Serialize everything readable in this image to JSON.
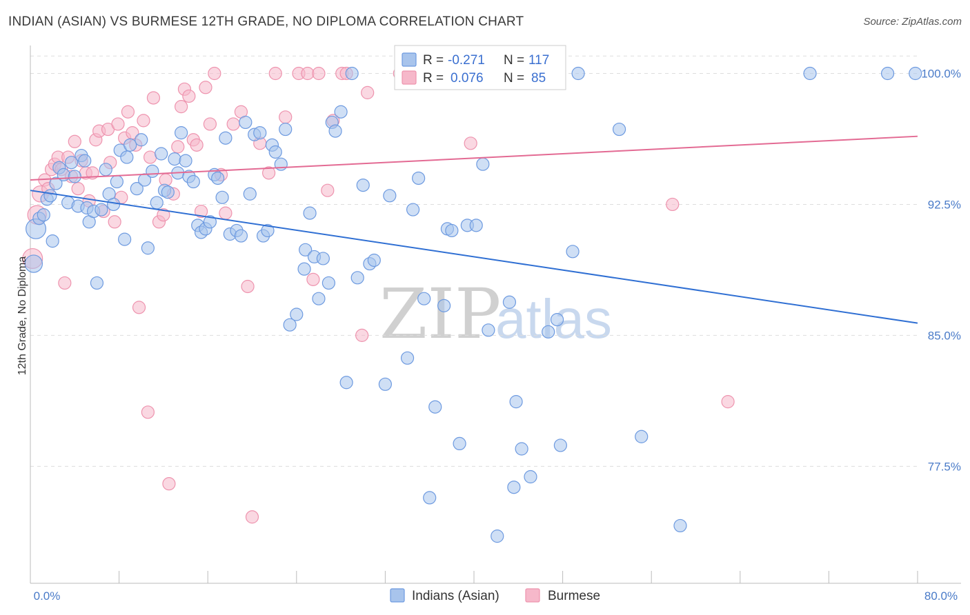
{
  "title": "INDIAN (ASIAN) VS BURMESE 12TH GRADE, NO DIPLOMA CORRELATION CHART",
  "source": "Source: ZipAtlas.com",
  "watermark": {
    "zip": "ZIP",
    "atlas": "atlas"
  },
  "colors": {
    "blue_fill": "#a8c4ec",
    "blue_stroke": "#6d9ae0",
    "blue_line": "#2f6fd3",
    "pink_fill": "#f6b8ca",
    "pink_stroke": "#ee93ae",
    "pink_line": "#e36a93",
    "grid": "#dddddd",
    "tick_text": "#4a7bc8"
  },
  "stats": {
    "blue": {
      "r_label": "R =",
      "r_value": "-0.271",
      "n_label": "N =",
      "n_value": "117"
    },
    "pink": {
      "r_label": "R =",
      "r_value": "0.076",
      "n_label": "N =",
      "n_value": "85"
    }
  },
  "chart_data": {
    "type": "scatter",
    "title": "INDIAN (ASIAN) VS BURMESE 12TH GRADE, NO DIPLOMA CORRELATION CHART",
    "xlabel": "",
    "ylabel": "12th Grade, No Diploma",
    "xlim": [
      0,
      80
    ],
    "ylim": [
      70.8,
      101.6
    ],
    "x_tick_labels": [
      "0.0%",
      "80.0%"
    ],
    "y_ticks": [
      {
        "value": 100.0,
        "label": "100.0%"
      },
      {
        "value": 92.5,
        "label": "92.5%"
      },
      {
        "value": 85.0,
        "label": "85.0%"
      },
      {
        "value": 77.5,
        "label": "77.5%"
      }
    ],
    "grid": "horizontal dashed",
    "legend_position": "bottom",
    "series": [
      {
        "name": "Indians (Asian)",
        "color": "#a8c4ec",
        "trend": {
          "x": [
            0,
            80
          ],
          "y": [
            93.3,
            85.7
          ]
        },
        "points": [
          [
            0.3,
            89.1,
            1.4
          ],
          [
            0.5,
            91.1,
            1.6
          ],
          [
            0.8,
            91.7,
            1.0
          ],
          [
            1.2,
            91.9,
            1.0
          ],
          [
            1.5,
            92.8,
            1.0
          ],
          [
            1.8,
            93.0,
            1.0
          ],
          [
            2.0,
            90.4,
            1.0
          ],
          [
            2.3,
            93.7,
            1.0
          ],
          [
            2.6,
            94.6,
            1.0
          ],
          [
            3.0,
            94.2,
            1.0
          ],
          [
            3.4,
            92.6,
            1.0
          ],
          [
            3.7,
            94.9,
            1.0
          ],
          [
            4.0,
            94.1,
            1.0
          ],
          [
            4.3,
            92.4,
            1.0
          ],
          [
            4.6,
            95.3,
            1.0
          ],
          [
            4.9,
            95.0,
            1.0
          ],
          [
            5.1,
            92.3,
            1.0
          ],
          [
            5.3,
            91.5,
            1.0
          ],
          [
            5.7,
            92.1,
            1.0
          ],
          [
            6.0,
            88.0,
            1.0
          ],
          [
            6.4,
            92.2,
            1.0
          ],
          [
            6.8,
            94.5,
            1.0
          ],
          [
            7.1,
            93.1,
            1.0
          ],
          [
            7.5,
            92.5,
            1.0
          ],
          [
            7.8,
            93.8,
            1.0
          ],
          [
            8.1,
            95.6,
            1.0
          ],
          [
            8.5,
            90.5,
            1.0
          ],
          [
            8.7,
            95.2,
            1.0
          ],
          [
            9.0,
            95.9,
            1.0
          ],
          [
            9.6,
            93.4,
            1.0
          ],
          [
            10.0,
            96.2,
            1.0
          ],
          [
            10.3,
            93.9,
            1.0
          ],
          [
            10.6,
            90.0,
            1.0
          ],
          [
            11.0,
            94.4,
            1.0
          ],
          [
            11.4,
            92.6,
            1.0
          ],
          [
            11.8,
            95.4,
            1.0
          ],
          [
            12.1,
            93.3,
            1.0
          ],
          [
            12.4,
            93.2,
            1.0
          ],
          [
            13.0,
            95.1,
            1.0
          ],
          [
            13.3,
            94.3,
            1.0
          ],
          [
            13.6,
            96.6,
            1.0
          ],
          [
            14.0,
            95.0,
            1.0
          ],
          [
            14.3,
            94.1,
            1.0
          ],
          [
            14.7,
            93.8,
            1.0
          ],
          [
            15.1,
            91.3,
            1.0
          ],
          [
            15.4,
            90.9,
            1.0
          ],
          [
            15.8,
            91.1,
            1.0
          ],
          [
            16.2,
            91.5,
            1.0
          ],
          [
            16.6,
            94.2,
            1.0
          ],
          [
            16.9,
            94.0,
            1.0
          ],
          [
            17.3,
            92.9,
            1.0
          ],
          [
            17.6,
            96.3,
            1.0
          ],
          [
            18.0,
            90.8,
            1.0
          ],
          [
            18.6,
            91.0,
            1.0
          ],
          [
            19.0,
            90.7,
            1.0
          ],
          [
            19.4,
            97.2,
            1.0
          ],
          [
            19.8,
            93.1,
            1.0
          ],
          [
            20.2,
            96.5,
            1.0
          ],
          [
            20.7,
            96.6,
            1.0
          ],
          [
            21.0,
            90.7,
            1.0
          ],
          [
            21.4,
            91.0,
            1.0
          ],
          [
            21.8,
            95.9,
            1.0
          ],
          [
            22.1,
            95.5,
            1.0
          ],
          [
            22.6,
            94.8,
            1.0
          ],
          [
            23.0,
            96.8,
            1.0
          ],
          [
            23.4,
            85.6,
            1.0
          ],
          [
            24.0,
            86.2,
            1.0
          ],
          [
            24.7,
            88.8,
            1.0
          ],
          [
            24.8,
            89.9,
            1.0
          ],
          [
            25.2,
            92.0,
            1.0
          ],
          [
            25.6,
            89.5,
            1.0
          ],
          [
            26.0,
            87.1,
            1.0
          ],
          [
            26.4,
            89.4,
            1.0
          ],
          [
            26.9,
            88.0,
            1.0
          ],
          [
            27.2,
            97.2,
            1.0
          ],
          [
            27.5,
            96.7,
            1.0
          ],
          [
            28.0,
            97.8,
            1.0
          ],
          [
            28.5,
            82.3,
            1.0
          ],
          [
            29.0,
            100.0,
            1.0
          ],
          [
            29.5,
            88.3,
            1.0
          ],
          [
            30.0,
            93.6,
            1.0
          ],
          [
            30.6,
            89.1,
            1.0
          ],
          [
            31.0,
            89.3,
            1.0
          ],
          [
            32.0,
            82.2,
            1.0
          ],
          [
            32.4,
            93.0,
            1.0
          ],
          [
            34.0,
            83.7,
            1.0
          ],
          [
            34.5,
            92.2,
            1.0
          ],
          [
            35.0,
            94.0,
            1.0
          ],
          [
            35.5,
            87.1,
            1.0
          ],
          [
            36.0,
            75.7,
            1.0
          ],
          [
            36.5,
            80.9,
            1.0
          ],
          [
            37.3,
            86.7,
            1.0
          ],
          [
            37.6,
            91.1,
            1.0
          ],
          [
            38.0,
            91.0,
            1.0
          ],
          [
            38.7,
            78.8,
            1.0
          ],
          [
            39.4,
            91.3,
            1.0
          ],
          [
            40.2,
            91.3,
            1.0
          ],
          [
            40.8,
            94.8,
            1.0
          ],
          [
            41.3,
            85.3,
            1.0
          ],
          [
            42.1,
            73.5,
            1.0
          ],
          [
            43.2,
            86.9,
            1.0
          ],
          [
            43.6,
            76.3,
            1.0
          ],
          [
            43.8,
            81.2,
            1.0
          ],
          [
            44.3,
            78.5,
            1.0
          ],
          [
            45.1,
            76.9,
            1.0
          ],
          [
            46.7,
            85.2,
            1.0
          ],
          [
            47.5,
            85.9,
            1.0
          ],
          [
            47.8,
            78.7,
            1.0
          ],
          [
            48.9,
            89.8,
            1.0
          ],
          [
            49.4,
            100.0,
            1.0
          ],
          [
            53.1,
            96.8,
            1.0
          ],
          [
            55.1,
            79.2,
            1.0
          ],
          [
            58.6,
            74.1,
            1.0
          ],
          [
            70.3,
            100.0,
            1.0
          ],
          [
            77.3,
            100.0,
            1.0
          ],
          [
            79.8,
            100.0,
            1.0
          ]
        ]
      },
      {
        "name": "Burmese",
        "color": "#f6b8ca",
        "trend": {
          "x": [
            0,
            80
          ],
          "y": [
            93.9,
            96.4
          ]
        },
        "points": [
          [
            0.2,
            89.4,
            1.6
          ],
          [
            0.6,
            91.9,
            1.5
          ],
          [
            0.9,
            93.1,
            1.3
          ],
          [
            1.3,
            93.9,
            1.0
          ],
          [
            1.6,
            93.4,
            1.0
          ],
          [
            1.9,
            94.5,
            1.0
          ],
          [
            2.2,
            94.8,
            1.0
          ],
          [
            2.5,
            95.2,
            1.0
          ],
          [
            2.8,
            94.5,
            1.0
          ],
          [
            3.1,
            88.0,
            1.0
          ],
          [
            3.4,
            95.2,
            1.0
          ],
          [
            3.7,
            94.1,
            1.0
          ],
          [
            4.0,
            96.1,
            1.0
          ],
          [
            4.3,
            93.4,
            1.0
          ],
          [
            4.6,
            95.0,
            1.0
          ],
          [
            5.0,
            94.3,
            1.0
          ],
          [
            5.3,
            92.7,
            1.0
          ],
          [
            5.6,
            94.3,
            1.0
          ],
          [
            5.9,
            96.2,
            1.0
          ],
          [
            6.2,
            96.7,
            1.0
          ],
          [
            6.6,
            92.1,
            1.0
          ],
          [
            7.0,
            96.8,
            1.0
          ],
          [
            7.2,
            94.9,
            1.0
          ],
          [
            7.6,
            91.5,
            1.0
          ],
          [
            7.9,
            97.1,
            1.0
          ],
          [
            8.2,
            92.9,
            1.0
          ],
          [
            8.5,
            96.3,
            1.0
          ],
          [
            8.8,
            97.8,
            1.0
          ],
          [
            9.2,
            96.6,
            1.0
          ],
          [
            9.5,
            95.9,
            1.0
          ],
          [
            9.8,
            86.6,
            1.0
          ],
          [
            10.2,
            97.3,
            1.0
          ],
          [
            10.6,
            80.6,
            1.0
          ],
          [
            10.8,
            95.2,
            1.0
          ],
          [
            11.1,
            98.6,
            1.0
          ],
          [
            11.6,
            91.5,
            1.0
          ],
          [
            12.0,
            91.9,
            1.0
          ],
          [
            12.2,
            93.9,
            1.0
          ],
          [
            12.5,
            76.5,
            1.0
          ],
          [
            12.9,
            93.1,
            1.0
          ],
          [
            13.3,
            95.8,
            1.0
          ],
          [
            13.6,
            98.1,
            1.0
          ],
          [
            13.9,
            99.1,
            1.0
          ],
          [
            14.3,
            98.7,
            1.0
          ],
          [
            14.7,
            96.2,
            1.0
          ],
          [
            15.0,
            95.9,
            1.0
          ],
          [
            15.4,
            92.1,
            1.0
          ],
          [
            15.8,
            99.2,
            1.0
          ],
          [
            16.2,
            97.1,
            1.0
          ],
          [
            16.6,
            100.0,
            1.0
          ],
          [
            17.2,
            94.2,
            1.0
          ],
          [
            17.6,
            92.0,
            1.0
          ],
          [
            18.3,
            97.1,
            1.0
          ],
          [
            19.0,
            97.8,
            1.0
          ],
          [
            19.6,
            87.8,
            1.0
          ],
          [
            20.0,
            74.6,
            1.0
          ],
          [
            20.7,
            96.0,
            1.0
          ],
          [
            21.5,
            94.3,
            1.0
          ],
          [
            22.1,
            100.0,
            1.0
          ],
          [
            23.0,
            97.5,
            1.0
          ],
          [
            24.2,
            100.0,
            1.0
          ],
          [
            25.0,
            100.0,
            1.0
          ],
          [
            25.5,
            88.2,
            1.0
          ],
          [
            26.0,
            100.0,
            1.0
          ],
          [
            26.8,
            93.3,
            1.0
          ],
          [
            27.3,
            97.3,
            1.0
          ],
          [
            28.1,
            100.0,
            1.0
          ],
          [
            28.5,
            100.0,
            1.0
          ],
          [
            29.9,
            85.0,
            1.0
          ],
          [
            30.4,
            98.9,
            1.0
          ],
          [
            33.3,
            100.0,
            1.0
          ],
          [
            33.8,
            100.0,
            1.0
          ],
          [
            35.0,
            100.0,
            1.0
          ],
          [
            36.5,
            100.0,
            1.0
          ],
          [
            37.2,
            100.0,
            1.0
          ],
          [
            38.7,
            100.0,
            1.0
          ],
          [
            39.7,
            96.0,
            1.0
          ],
          [
            45.8,
            100.0,
            1.0
          ],
          [
            57.9,
            92.5,
            1.0
          ],
          [
            62.9,
            81.2,
            1.0
          ]
        ]
      }
    ]
  }
}
